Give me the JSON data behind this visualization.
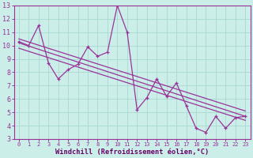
{
  "xlabel": "Windchill (Refroidissement éolien,°C)",
  "bg_color": "#cceee8",
  "grid_color": "#aad8d2",
  "line_color": "#993399",
  "spine_color": "#993399",
  "tick_color": "#993399",
  "label_color": "#660066",
  "xlim": [
    -0.5,
    23.5
  ],
  "ylim": [
    3,
    13
  ],
  "xticks": [
    0,
    1,
    2,
    3,
    4,
    5,
    6,
    7,
    8,
    9,
    10,
    11,
    12,
    13,
    14,
    15,
    16,
    17,
    18,
    19,
    20,
    21,
    22,
    23
  ],
  "yticks": [
    3,
    4,
    5,
    6,
    7,
    8,
    9,
    10,
    11,
    12,
    13
  ],
  "series1_x": [
    0,
    1,
    2,
    3,
    4,
    5,
    6,
    7,
    8,
    9,
    10,
    11,
    12,
    13,
    14,
    15,
    16,
    17,
    18,
    19,
    20,
    21,
    22,
    23
  ],
  "series1_y": [
    10.3,
    10.0,
    11.5,
    8.7,
    7.5,
    8.2,
    8.6,
    9.9,
    9.2,
    9.5,
    13.0,
    11.0,
    5.2,
    6.1,
    7.5,
    6.2,
    7.2,
    5.5,
    3.8,
    3.5,
    4.7,
    3.8,
    4.6,
    4.7
  ],
  "trend1_x": [
    0,
    23
  ],
  "trend1_y": [
    10.2,
    4.7
  ],
  "trend2_x": [
    0,
    23
  ],
  "trend2_y": [
    9.8,
    4.4
  ],
  "trend3_x": [
    0,
    23
  ],
  "trend3_y": [
    10.5,
    5.1
  ]
}
